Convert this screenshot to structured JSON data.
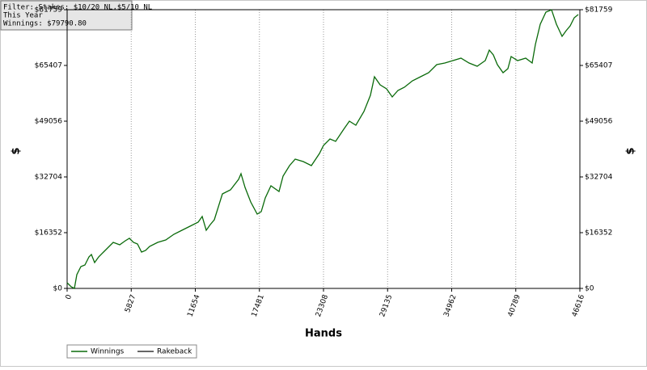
{
  "chart_data": {
    "type": "line",
    "annotations": [
      "Filter: Stakes: $10/20 NL,$5/10 NL",
      "This Year",
      "Winnings: $79790.80"
    ],
    "xlabel": "Hands",
    "ylabel": "$",
    "xlim": [
      0,
      46616
    ],
    "xticks": [
      0,
      5827,
      11654,
      17481,
      23308,
      29135,
      34962,
      40789,
      46616
    ],
    "ylim": [
      0,
      81759
    ],
    "yticks": [
      {
        "value": 0,
        "label": "$0"
      },
      {
        "value": 16352,
        "label": "$16352"
      },
      {
        "value": 32704,
        "label": "$32704"
      },
      {
        "value": 49056,
        "label": "$49056"
      },
      {
        "value": 65407,
        "label": "$65407"
      },
      {
        "value": 81759,
        "label": "$81759"
      }
    ],
    "grid": true,
    "series": [
      {
        "name": "Winnings",
        "color": "#0a6a0a",
        "x": [
          0,
          368,
          662,
          882,
          1250,
          1618,
          1985,
          2206,
          2500,
          2868,
          3309,
          3824,
          4191,
          4779,
          5294,
          5662,
          6029,
          6397,
          6765,
          7132,
          7500,
          8235,
          8971,
          9706,
          10441,
          11177,
          11912,
          12279,
          12647,
          13015,
          13382,
          14118,
          14853,
          15588,
          15809,
          16177,
          16691,
          17280,
          17647,
          18015,
          18530,
          19265,
          19632,
          20221,
          20735,
          21471,
          22206,
          22941,
          23309,
          23897,
          24412,
          25147,
          25662,
          26250,
          26985,
          27574,
          27941,
          28456,
          29044,
          29559,
          30074,
          30662,
          31397,
          32133,
          32868,
          33603,
          34338,
          35074,
          35809,
          36544,
          37279,
          38015,
          38382,
          38750,
          39118,
          39632,
          40074,
          40368,
          40956,
          41691,
          42279,
          42574,
          43015,
          43529,
          44044,
          44485,
          44999,
          45367,
          45735,
          46103,
          46470
        ],
        "values": [
          1659,
          474,
          0,
          4029,
          6398,
          6872,
          9242,
          9953,
          7583,
          9242,
          10664,
          12323,
          13508,
          12797,
          13982,
          14693,
          13508,
          13034,
          10664,
          11138,
          12323,
          13508,
          14219,
          15878,
          17063,
          18247,
          19432,
          21091,
          17063,
          18721,
          20143,
          27727,
          28912,
          31992,
          33651,
          29623,
          25357,
          21802,
          22513,
          26542,
          30096,
          28438,
          32940,
          36021,
          37917,
          37206,
          36021,
          39576,
          41945,
          43841,
          43130,
          46685,
          49055,
          47870,
          51899,
          56638,
          62089,
          59719,
          58535,
          56165,
          58060,
          59008,
          60904,
          62089,
          63274,
          65643,
          66117,
          66828,
          67539,
          66117,
          65170,
          66828,
          69909,
          68487,
          65643,
          63274,
          64459,
          68013,
          66828,
          67539,
          66117,
          71568,
          77492,
          81047,
          81700,
          77492,
          73938,
          75597,
          77019,
          79388,
          80336
        ]
      },
      {
        "name": "Rakeback",
        "color": "#333333",
        "x": [],
        "values": []
      }
    ]
  }
}
